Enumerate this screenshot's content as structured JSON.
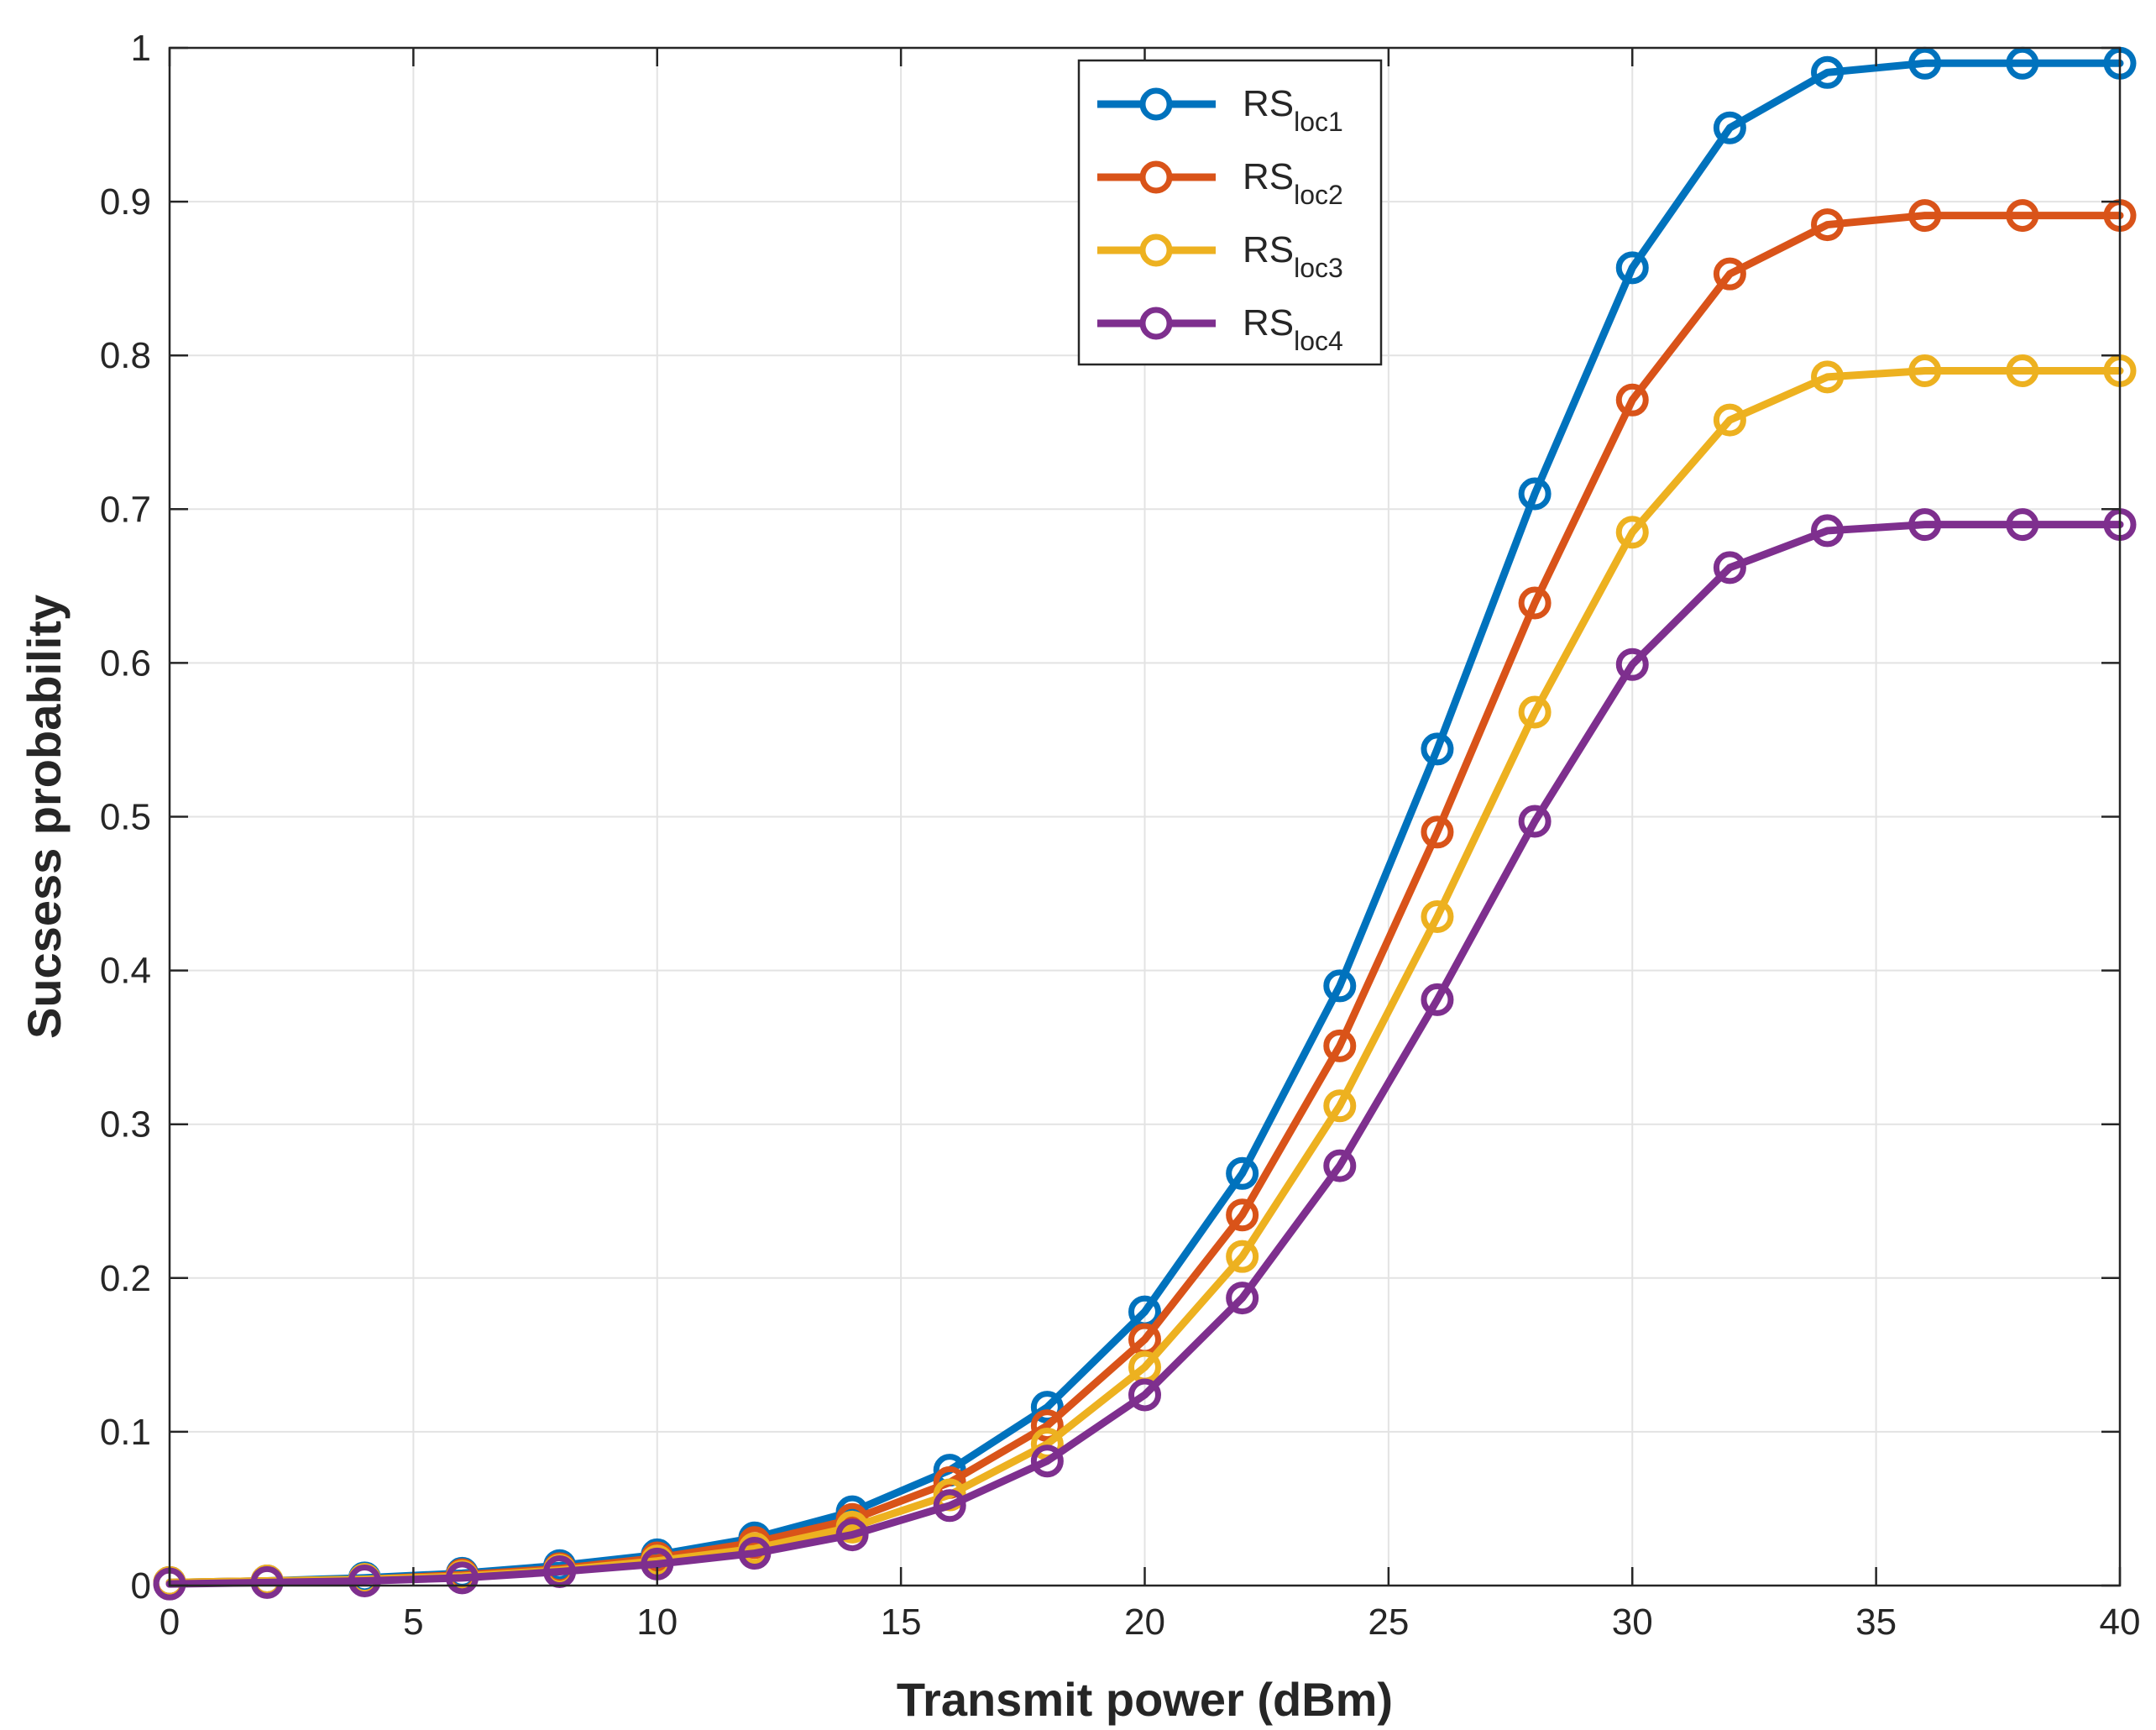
{
  "chart_data": {
    "type": "line",
    "title": "",
    "xlabel": "Transmit power (dBm)",
    "ylabel": "Sucsess probability",
    "xlim": [
      0,
      40
    ],
    "ylim": [
      0,
      1
    ],
    "grid": true,
    "legend_position": "top-center",
    "xticks": [
      0,
      5,
      10,
      15,
      20,
      25,
      30,
      35,
      40
    ],
    "yticks": [
      0,
      0.1,
      0.2,
      0.3,
      0.4,
      0.5,
      0.6,
      0.7,
      0.8,
      0.9,
      1
    ],
    "x": [
      0,
      2,
      4,
      6,
      8,
      10,
      12,
      14,
      16,
      18,
      20,
      22,
      24,
      26,
      28,
      30,
      32,
      34,
      36,
      38,
      40
    ],
    "series": [
      {
        "name": "RS",
        "subscript": "loc1",
        "color": "#0072BD",
        "values": [
          0.002,
          0.003,
          0.005,
          0.008,
          0.013,
          0.02,
          0.031,
          0.048,
          0.075,
          0.116,
          0.178,
          0.268,
          0.39,
          0.544,
          0.71,
          0.857,
          0.948,
          0.984,
          0.99,
          0.99,
          0.99
        ]
      },
      {
        "name": "RS",
        "subscript": "loc2",
        "color": "#D95319",
        "values": [
          0.002,
          0.003,
          0.004,
          0.007,
          0.011,
          0.018,
          0.028,
          0.043,
          0.067,
          0.104,
          0.16,
          0.241,
          0.351,
          0.49,
          0.639,
          0.771,
          0.853,
          0.885,
          0.891,
          0.891,
          0.891
        ]
      },
      {
        "name": "RS",
        "subscript": "loc3",
        "color": "#EDB120",
        "values": [
          0.002,
          0.003,
          0.004,
          0.006,
          0.01,
          0.016,
          0.024,
          0.038,
          0.059,
          0.092,
          0.142,
          0.214,
          0.312,
          0.435,
          0.568,
          0.685,
          0.758,
          0.786,
          0.79,
          0.79,
          0.79
        ]
      },
      {
        "name": "RS",
        "subscript": "loc4",
        "color": "#7E2F8E",
        "values": [
          0.001,
          0.002,
          0.003,
          0.005,
          0.009,
          0.014,
          0.021,
          0.033,
          0.052,
          0.081,
          0.124,
          0.187,
          0.273,
          0.381,
          0.497,
          0.599,
          0.662,
          0.686,
          0.69,
          0.69,
          0.69
        ]
      }
    ]
  }
}
